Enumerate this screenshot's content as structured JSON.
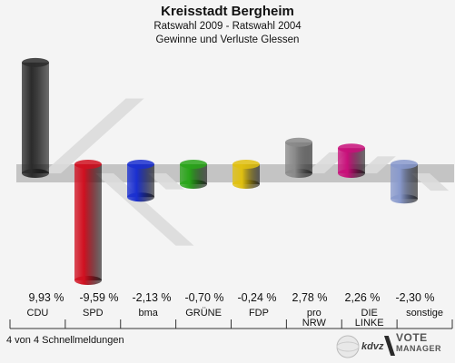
{
  "header": {
    "title": "Kreisstadt Bergheim",
    "subtitle1": "Ratswahl 2009 - Ratswahl 2004",
    "subtitle2": "Gewinne und Verluste Glessen"
  },
  "footer": {
    "status": "4 von 4 Schnellmeldungen",
    "logo_kdvz": "kdvz",
    "logo_vote": "VOTE",
    "logo_manager": "MANAGER"
  },
  "chart_data": {
    "type": "bar",
    "categories": [
      "CDU",
      "SPD",
      "bma",
      "GRÜNE",
      "FDP",
      "pro NRW",
      "DIE LINKE",
      "sonstige"
    ],
    "category_lines": [
      [
        "CDU"
      ],
      [
        "SPD"
      ],
      [
        "bma"
      ],
      [
        "GRÜNE"
      ],
      [
        "FDP"
      ],
      [
        "pro",
        "NRW"
      ],
      [
        "DIE",
        "LINKE"
      ],
      [
        "sonstige"
      ]
    ],
    "values": [
      9.93,
      -9.59,
      -2.13,
      -0.7,
      -0.24,
      2.78,
      2.26,
      -2.3
    ],
    "value_labels": [
      "9,93 %",
      "-9,59 %",
      "-2,13 %",
      "-0,70 %",
      "-0,24 %",
      "2,78 %",
      "2,26 %",
      "-2,30 %"
    ],
    "colors": [
      "#2b2b2b",
      "#d01020",
      "#1a2fd0",
      "#2aa51a",
      "#e0c010",
      "#8a8a8a",
      "#c8107a",
      "#8899cc"
    ]
  }
}
